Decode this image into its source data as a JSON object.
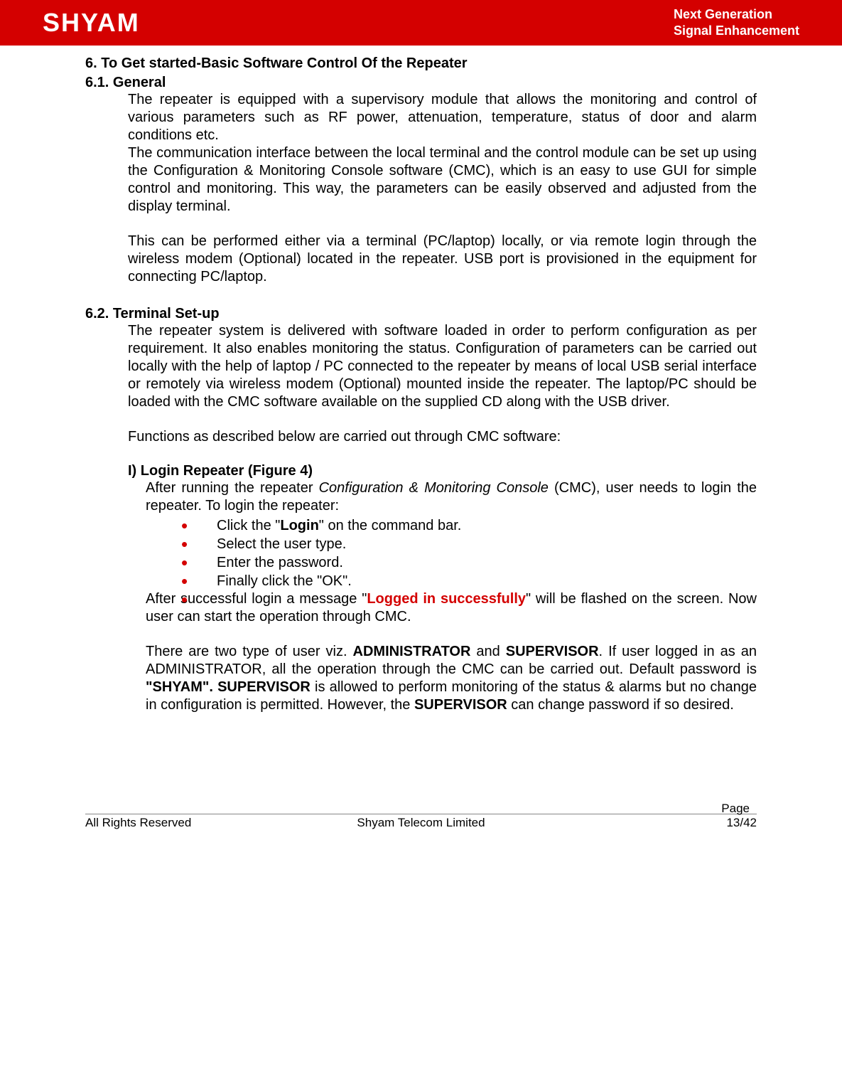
{
  "header": {
    "logo": "SHYAM",
    "tagline_line1": "Next Generation",
    "tagline_line2": "Signal Enhancement"
  },
  "section6": {
    "title": "6. To Get started-Basic Software Control Of the Repeater",
    "s61": {
      "title": "6.1. General",
      "p1": "The repeater is equipped with a supervisory module that allows the monitoring and control of various parameters such as RF power, attenuation, temperature, status of door and alarm conditions etc.",
      "p2": "The communication interface between the local terminal and the control module can be set up using the Configuration & Monitoring Console software (CMC), which is an easy to use GUI for simple control and monitoring. This way, the parameters can be easily observed and adjusted from the display terminal.",
      "p3": "This can be performed either via a terminal (PC/laptop) locally, or via remote login through the wireless modem (Optional) located in the repeater. USB port is provisioned in the equipment for connecting PC/laptop."
    },
    "s62": {
      "title": "6.2. Terminal Set-up",
      "p1": "The repeater system is delivered with software loaded in order to perform configuration as per requirement. It also enables monitoring the status. Configuration of parameters can be carried out locally with the help of laptop / PC connected to the repeater by means of local USB serial interface or remotely via wireless modem (Optional) mounted inside the repeater. The laptop/PC should be loaded with the CMC software available on the supplied CD along with the USB driver.",
      "p2": "Functions as described below are carried out through CMC software:",
      "login": {
        "title": "I) Login Repeater  (Figure 4)",
        "intro_a": "After running the repeater ",
        "intro_italic": "Configuration & Monitoring Console",
        "intro_b": " (CMC), user needs to login the repeater. To login the repeater:",
        "b1_a": "Click the \"",
        "b1_bold": "Login",
        "b1_b": "\" on the command bar.",
        "b2": "Select the user type.",
        "b3": "Enter the password.",
        "b4": "Finally click the \"OK\".",
        "after_a": "After successful login a message \"",
        "after_red": "Logged in successfully",
        "after_b": "\" will be flashed on the screen. Now user can start the operation through CMC.",
        "p_types_a": "There are two type of user viz. ",
        "p_types_admin": "ADMINISTRATOR",
        "p_types_b": " and ",
        "p_types_sup": "SUPERVISOR",
        "p_types_c": ".  If user logged in as an ADMINISTRATOR, all the operation through the CMC can be carried out.  Default password is ",
        "p_types_pwd": "\"SHYAM\". SUPERVISOR",
        "p_types_d": " is allowed to perform monitoring of the status & alarms but no change in configuration is permitted. However, the ",
        "p_types_sup2": "SUPERVISOR",
        "p_types_e": " can change password if so desired."
      }
    }
  },
  "footer": {
    "page_label": "Page",
    "left": "All Rights Reserved",
    "center": "Shyam Telecom Limited",
    "right": "13/42"
  }
}
